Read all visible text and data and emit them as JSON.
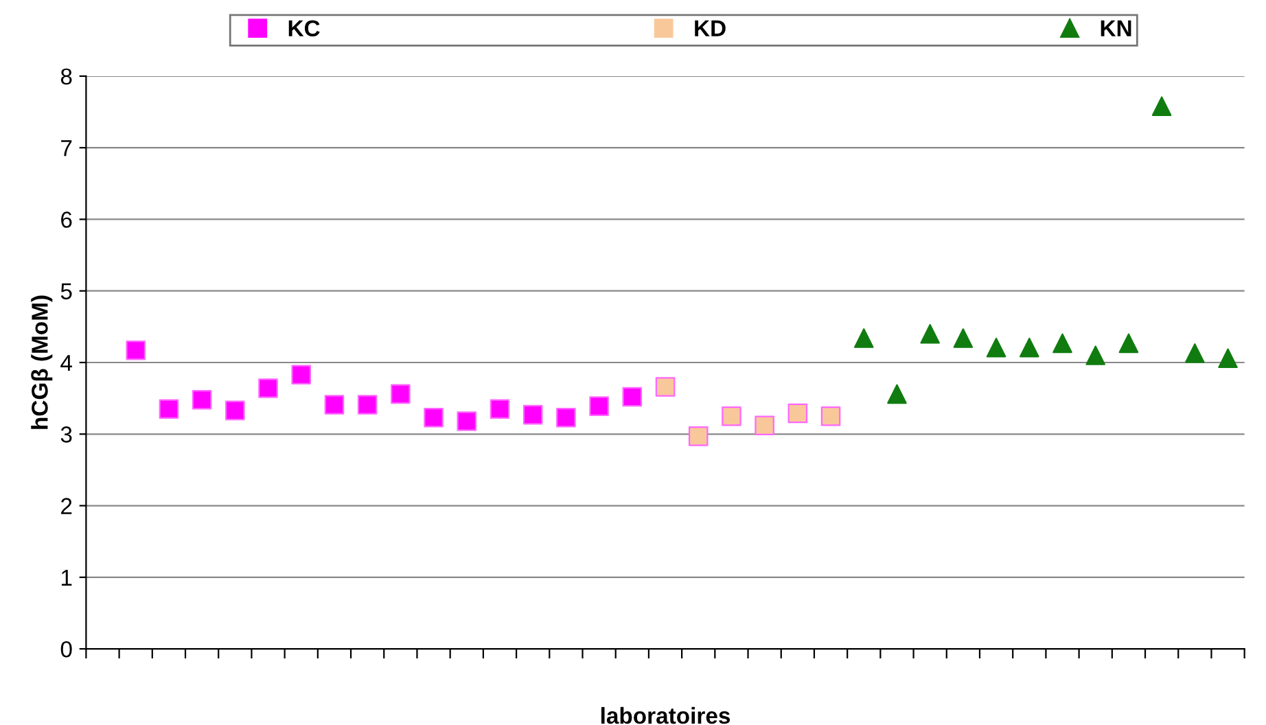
{
  "chart_data": {
    "type": "scatter",
    "xlabel": "laboratoires",
    "ylabel": "hCGβ (MoM)",
    "categories": [
      null,
      null,
      null,
      null,
      null,
      null,
      null,
      null,
      null,
      null,
      null,
      null,
      null,
      null,
      null,
      null,
      null,
      null,
      null,
      null,
      null,
      null,
      null,
      null,
      null,
      null,
      null,
      null,
      null,
      null,
      null,
      null,
      null,
      null,
      null
    ],
    "series": [
      {
        "name": "KC",
        "color": "#ff00ff",
        "marker": "square",
        "values": [
          null,
          4.17,
          3.35,
          3.48,
          3.33,
          3.64,
          3.83,
          3.41,
          3.41,
          3.56,
          3.23,
          3.18,
          3.35,
          3.27,
          3.23,
          3.39,
          3.52,
          null,
          null,
          null,
          null,
          null,
          null,
          null,
          null,
          null,
          null,
          null,
          null,
          null,
          null,
          null,
          null,
          null,
          null
        ]
      },
      {
        "name": "KD",
        "color": "#f9c89a",
        "marker": "square",
        "values": [
          null,
          null,
          null,
          null,
          null,
          null,
          null,
          null,
          null,
          null,
          null,
          null,
          null,
          null,
          null,
          null,
          null,
          3.66,
          2.97,
          3.25,
          3.12,
          3.29,
          3.25,
          null,
          null,
          null,
          null,
          null,
          null,
          null,
          null,
          null,
          null,
          null,
          null
        ]
      },
      {
        "name": "KN",
        "color": "#107c10",
        "marker": "triangle",
        "values": [
          null,
          null,
          null,
          null,
          null,
          null,
          null,
          null,
          null,
          null,
          null,
          null,
          null,
          null,
          null,
          null,
          null,
          null,
          null,
          null,
          null,
          null,
          null,
          4.34,
          3.56,
          4.4,
          4.34,
          4.21,
          4.21,
          4.27,
          4.1,
          4.27,
          7.58,
          4.13,
          4.06
        ]
      }
    ],
    "ylim": [
      0,
      8
    ],
    "yticks": [
      0,
      1,
      2,
      3,
      4,
      5,
      6,
      7,
      8
    ],
    "grid": "y",
    "legend": "top"
  }
}
